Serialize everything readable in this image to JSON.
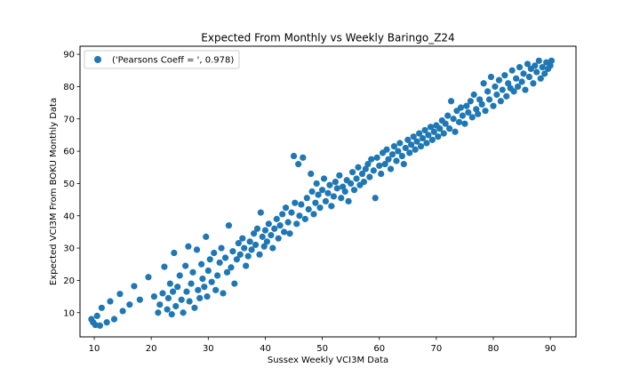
{
  "chart_data": {
    "type": "scatter",
    "title": "Expected From Monthly vs Weekly Baringo_Z24",
    "xlabel": "Sussex Weekly VCI3M Data",
    "ylabel": "Expected VCI3M From BOKU Monthly Data",
    "xlim": [
      7.5,
      94.5
    ],
    "ylim": [
      2.5,
      92.5
    ],
    "xticks": [
      10,
      20,
      30,
      40,
      50,
      60,
      70,
      80,
      90
    ],
    "yticks": [
      10,
      20,
      30,
      40,
      50,
      60,
      70,
      80,
      90
    ],
    "grid": false,
    "legend": {
      "position": "top-left",
      "label": "('Pearsons Coeff = ', 0.978)"
    },
    "series": [
      {
        "name": "('Pearsons Coeff = ', 0.978)",
        "color": "#1f77b4",
        "points": [
          [
            9.5,
            8.0
          ],
          [
            9.8,
            7.0
          ],
          [
            10.2,
            6.2
          ],
          [
            10.5,
            9.0
          ],
          [
            11.0,
            6.0
          ],
          [
            11.3,
            11.5
          ],
          [
            12.2,
            7.0
          ],
          [
            12.8,
            13.5
          ],
          [
            13.5,
            8.0
          ],
          [
            14.5,
            15.8
          ],
          [
            15.0,
            10.5
          ],
          [
            16.2,
            12.5
          ],
          [
            17.0,
            18.2
          ],
          [
            18.0,
            14.0
          ],
          [
            19.5,
            21.0
          ],
          [
            20.5,
            15.0
          ],
          [
            21.2,
            10.0
          ],
          [
            21.5,
            12.5
          ],
          [
            22.0,
            16.0
          ],
          [
            22.3,
            24.2
          ],
          [
            22.8,
            11.0
          ],
          [
            23.0,
            14.5
          ],
          [
            23.3,
            19.0
          ],
          [
            23.6,
            9.5
          ],
          [
            23.8,
            16.5
          ],
          [
            24.0,
            28.5
          ],
          [
            24.3,
            12.0
          ],
          [
            24.6,
            18.0
          ],
          [
            25.0,
            21.5
          ],
          [
            25.3,
            14.0
          ],
          [
            25.6,
            10.0
          ],
          [
            26.0,
            24.5
          ],
          [
            26.2,
            16.5
          ],
          [
            26.5,
            30.5
          ],
          [
            26.7,
            13.5
          ],
          [
            27.0,
            19.0
          ],
          [
            27.3,
            22.5
          ],
          [
            27.6,
            11.5
          ],
          [
            28.0,
            29.5
          ],
          [
            28.2,
            17.0
          ],
          [
            28.5,
            14.5
          ],
          [
            28.8,
            25.0
          ],
          [
            29.0,
            20.5
          ],
          [
            29.3,
            18.0
          ],
          [
            29.6,
            33.5
          ],
          [
            29.8,
            15.0
          ],
          [
            30.0,
            23.0
          ],
          [
            30.3,
            26.5
          ],
          [
            30.6,
            19.5
          ],
          [
            31.0,
            28.5
          ],
          [
            31.3,
            17.0
          ],
          [
            31.6,
            21.5
          ],
          [
            32.0,
            25.5
          ],
          [
            32.3,
            30.0
          ],
          [
            32.6,
            16.0
          ],
          [
            33.0,
            27.0
          ],
          [
            33.3,
            22.5
          ],
          [
            33.6,
            37.0
          ],
          [
            34.0,
            24.0
          ],
          [
            34.3,
            29.0
          ],
          [
            34.6,
            19.0
          ],
          [
            35.0,
            26.5
          ],
          [
            35.3,
            31.5
          ],
          [
            35.6,
            28.0
          ],
          [
            36.0,
            33.0
          ],
          [
            36.3,
            30.0
          ],
          [
            36.6,
            24.5
          ],
          [
            37.0,
            27.5
          ],
          [
            37.3,
            32.0
          ],
          [
            37.6,
            29.5
          ],
          [
            38.0,
            34.5
          ],
          [
            38.3,
            31.0
          ],
          [
            38.6,
            36.0
          ],
          [
            39.0,
            28.0
          ],
          [
            39.2,
            41.0
          ],
          [
            39.5,
            33.5
          ],
          [
            39.8,
            30.5
          ],
          [
            40.0,
            35.5
          ],
          [
            40.3,
            32.0
          ],
          [
            40.6,
            37.5
          ],
          [
            41.0,
            34.0
          ],
          [
            41.3,
            30.0
          ],
          [
            41.6,
            36.0
          ],
          [
            42.0,
            39.0
          ],
          [
            42.3,
            33.0
          ],
          [
            42.6,
            37.0
          ],
          [
            43.0,
            40.5
          ],
          [
            43.3,
            35.0
          ],
          [
            43.6,
            42.5
          ],
          [
            44.0,
            38.0
          ],
          [
            44.3,
            34.5
          ],
          [
            44.6,
            41.0
          ],
          [
            45.0,
            58.5
          ],
          [
            45.2,
            44.0
          ],
          [
            45.5,
            37.5
          ],
          [
            45.8,
            56.0
          ],
          [
            46.0,
            40.0
          ],
          [
            46.3,
            43.5
          ],
          [
            46.6,
            58.0
          ],
          [
            47.0,
            39.0
          ],
          [
            47.3,
            45.5
          ],
          [
            47.6,
            42.0
          ],
          [
            48.0,
            53.0
          ],
          [
            48.2,
            47.5
          ],
          [
            48.5,
            40.5
          ],
          [
            48.8,
            44.0
          ],
          [
            49.0,
            50.0
          ],
          [
            49.3,
            46.5
          ],
          [
            49.6,
            42.5
          ],
          [
            50.0,
            48.0
          ],
          [
            50.3,
            51.5
          ],
          [
            50.6,
            44.5
          ],
          [
            51.0,
            47.0
          ],
          [
            51.3,
            49.5
          ],
          [
            51.6,
            43.0
          ],
          [
            52.0,
            46.0
          ],
          [
            52.3,
            50.5
          ],
          [
            52.6,
            48.5
          ],
          [
            53.0,
            52.5
          ],
          [
            53.3,
            45.5
          ],
          [
            53.6,
            49.0
          ],
          [
            54.0,
            47.5
          ],
          [
            54.3,
            51.0
          ],
          [
            54.6,
            44.5
          ],
          [
            55.0,
            50.0
          ],
          [
            55.3,
            53.5
          ],
          [
            55.6,
            48.0
          ],
          [
            56.0,
            51.5
          ],
          [
            56.3,
            55.0
          ],
          [
            56.6,
            49.5
          ],
          [
            57.0,
            53.0
          ],
          [
            57.3,
            50.5
          ],
          [
            57.6,
            54.5
          ],
          [
            58.0,
            56.0
          ],
          [
            58.3,
            52.0
          ],
          [
            58.6,
            57.5
          ],
          [
            59.0,
            54.0
          ],
          [
            59.3,
            45.5
          ],
          [
            59.6,
            58.0
          ],
          [
            60.0,
            55.5
          ],
          [
            60.3,
            53.0
          ],
          [
            60.6,
            59.5
          ],
          [
            61.0,
            56.0
          ],
          [
            61.3,
            60.5
          ],
          [
            61.6,
            57.5
          ],
          [
            62.0,
            54.5
          ],
          [
            62.3,
            59.0
          ],
          [
            62.6,
            61.5
          ],
          [
            63.0,
            57.0
          ],
          [
            63.3,
            60.0
          ],
          [
            63.6,
            62.5
          ],
          [
            64.0,
            58.5
          ],
          [
            64.3,
            56.0
          ],
          [
            64.6,
            61.0
          ],
          [
            65.0,
            63.5
          ],
          [
            65.3,
            59.5
          ],
          [
            65.6,
            62.0
          ],
          [
            66.0,
            64.5
          ],
          [
            66.3,
            60.5
          ],
          [
            66.6,
            63.0
          ],
          [
            67.0,
            65.5
          ],
          [
            67.3,
            61.5
          ],
          [
            67.6,
            64.0
          ],
          [
            68.0,
            66.5
          ],
          [
            68.3,
            62.5
          ],
          [
            68.6,
            65.0
          ],
          [
            69.0,
            67.5
          ],
          [
            69.3,
            63.5
          ],
          [
            69.6,
            66.0
          ],
          [
            70.0,
            68.0
          ],
          [
            70.3,
            64.5
          ],
          [
            70.6,
            67.0
          ],
          [
            71.0,
            69.5
          ],
          [
            71.3,
            65.5
          ],
          [
            71.6,
            68.5
          ],
          [
            72.0,
            71.0
          ],
          [
            72.3,
            67.0
          ],
          [
            72.6,
            75.5
          ],
          [
            73.0,
            70.0
          ],
          [
            73.3,
            66.0
          ],
          [
            73.6,
            72.5
          ],
          [
            74.0,
            69.0
          ],
          [
            74.3,
            73.5
          ],
          [
            74.6,
            71.0
          ],
          [
            75.0,
            68.5
          ],
          [
            75.3,
            74.0
          ],
          [
            75.6,
            72.0
          ],
          [
            76.0,
            75.5
          ],
          [
            76.3,
            70.5
          ],
          [
            76.6,
            77.5
          ],
          [
            77.0,
            73.0
          ],
          [
            77.3,
            71.5
          ],
          [
            77.6,
            76.0
          ],
          [
            78.0,
            74.5
          ],
          [
            78.3,
            81.0
          ],
          [
            78.6,
            72.5
          ],
          [
            79.0,
            78.5
          ],
          [
            79.3,
            76.0
          ],
          [
            79.6,
            83.0
          ],
          [
            80.0,
            74.0
          ],
          [
            80.3,
            80.0
          ],
          [
            80.6,
            77.5
          ],
          [
            81.0,
            82.0
          ],
          [
            81.3,
            75.5
          ],
          [
            81.6,
            79.0
          ],
          [
            82.0,
            83.5
          ],
          [
            82.3,
            77.0
          ],
          [
            82.6,
            81.0
          ],
          [
            83.0,
            79.5
          ],
          [
            83.3,
            85.0
          ],
          [
            83.6,
            78.5
          ],
          [
            84.0,
            82.5
          ],
          [
            84.3,
            80.0
          ],
          [
            84.6,
            86.0
          ],
          [
            85.0,
            81.5
          ],
          [
            85.3,
            84.0
          ],
          [
            85.6,
            79.0
          ],
          [
            86.0,
            87.0
          ],
          [
            86.3,
            83.0
          ],
          [
            86.6,
            85.5
          ],
          [
            87.0,
            81.0
          ],
          [
            87.3,
            86.5
          ],
          [
            87.6,
            84.5
          ],
          [
            88.0,
            88.0
          ],
          [
            88.3,
            82.5
          ],
          [
            88.6,
            86.0
          ],
          [
            89.0,
            84.0
          ],
          [
            89.3,
            87.5
          ],
          [
            89.6,
            85.5
          ],
          [
            90.0,
            86.5
          ],
          [
            90.2,
            88.0
          ]
        ]
      }
    ]
  }
}
